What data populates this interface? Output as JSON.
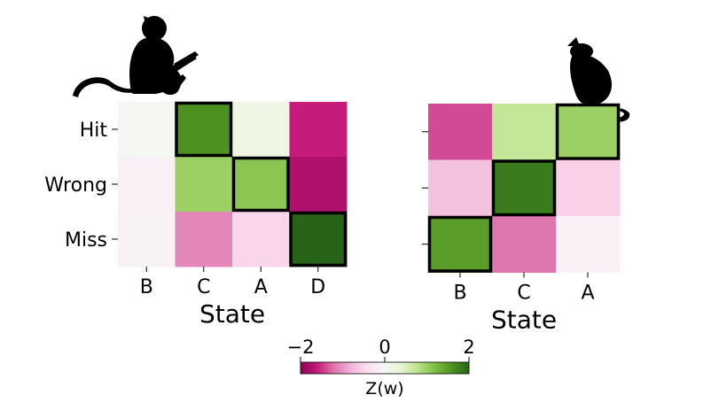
{
  "chart_data": [
    {
      "type": "heatmap",
      "subject": "monkey",
      "xlabel": "State",
      "ylabel": "",
      "x_categories": [
        "B",
        "C",
        "A",
        "D"
      ],
      "y_categories": [
        "Hit",
        "Wrong",
        "Miss"
      ],
      "values": [
        [
          0.05,
          1.6,
          0.2,
          -1.6
        ],
        [
          -0.1,
          1.0,
          1.1,
          -1.75
        ],
        [
          -0.08,
          -1.1,
          -0.5,
          2.0
        ]
      ],
      "highlighted_cells": [
        [
          0,
          1
        ],
        [
          1,
          2
        ],
        [
          2,
          3
        ]
      ]
    },
    {
      "type": "heatmap",
      "subject": "rat",
      "xlabel": "State",
      "ylabel": "",
      "x_categories": [
        "B",
        "C",
        "A"
      ],
      "y_categories": [
        "",
        "",
        ""
      ],
      "values": [
        [
          -1.4,
          0.7,
          1.0
        ],
        [
          -0.7,
          1.8,
          -0.55
        ],
        [
          1.5,
          -1.2,
          -0.1
        ]
      ],
      "highlighted_cells": [
        [
          0,
          2
        ],
        [
          1,
          1
        ],
        [
          2,
          0
        ]
      ]
    }
  ],
  "colorbar": {
    "label": "Z(w)",
    "min": -2,
    "max": 2,
    "ticks": [
      "−2",
      "0",
      "2"
    ],
    "tick_values": [
      -2,
      0,
      2
    ],
    "colormap": "PiYG",
    "colors": [
      "#8e0152",
      "#c51b7d",
      "#de77ae",
      "#f1b6da",
      "#fde0ef",
      "#f7f7f7",
      "#e6f5d0",
      "#b8e186",
      "#7fbc41",
      "#4d9221",
      "#276419"
    ]
  },
  "icons": [
    "monkey-silhouette-icon",
    "rat-silhouette-icon"
  ]
}
